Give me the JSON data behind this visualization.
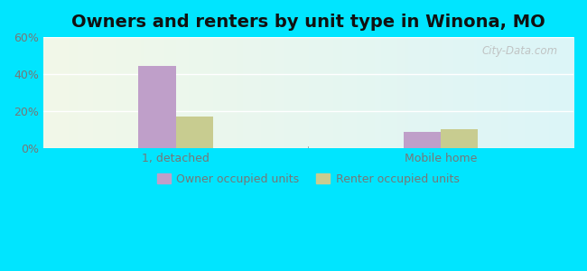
{
  "title": "Owners and renters by unit type in Winona, MO",
  "categories": [
    "1, detached",
    "Mobile home"
  ],
  "owner_values": [
    44.5,
    9.0
  ],
  "renter_values": [
    17.0,
    10.5
  ],
  "owner_color": "#bf9fc9",
  "renter_color": "#c8cc90",
  "ylim": [
    0,
    60
  ],
  "yticks": [
    0,
    20,
    40,
    60
  ],
  "ytick_labels": [
    "0%",
    "20%",
    "40%",
    "60%"
  ],
  "background_outer": "#00e5ff",
  "watermark": "City-Data.com",
  "legend_owner": "Owner occupied units",
  "legend_renter": "Renter occupied units",
  "title_fontsize": 14,
  "bar_width": 0.28,
  "group_centers": [
    1,
    3
  ],
  "xlim": [
    0,
    4
  ]
}
